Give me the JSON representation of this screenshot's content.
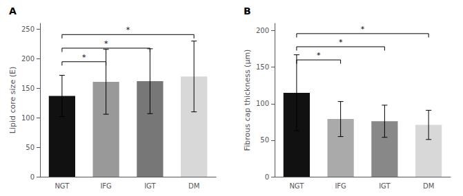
{
  "chart_data": [
    {
      "type": "bar",
      "title": "A",
      "categories": [
        "NGT",
        "IFG",
        "IGT",
        "DM"
      ],
      "values": [
        137,
        161,
        162,
        170
      ],
      "errors": [
        35,
        55,
        55,
        60
      ],
      "colors": [
        "#111111",
        "#999999",
        "#777777",
        "#d8d8d8"
      ],
      "ylabel": "Lipid core size (E)",
      "ylim": [
        0,
        260
      ],
      "yticks": [
        0,
        50,
        100,
        150,
        200,
        250
      ],
      "grid": false,
      "annotations": [
        {
          "text": "*",
          "from": "NGT",
          "to": "IFG",
          "y": 195
        },
        {
          "text": "*",
          "from": "NGT",
          "to": "IGT",
          "y": 218
        },
        {
          "text": "*",
          "from": "NGT",
          "to": "DM",
          "y": 241
        }
      ]
    },
    {
      "type": "bar",
      "title": "B",
      "categories": [
        "NGT",
        "IFG",
        "IGT",
        "DM"
      ],
      "values": [
        115,
        79,
        76,
        71
      ],
      "errors": [
        52,
        24,
        22,
        20
      ],
      "colors": [
        "#111111",
        "#aaaaaa",
        "#888888",
        "#d8d8d8"
      ],
      "ylabel": "Fibrous cap thickness (μm)",
      "ylim": [
        0,
        210
      ],
      "yticks": [
        0,
        50,
        100,
        150,
        200
      ],
      "grid": false,
      "annotations": [
        {
          "text": "*",
          "from": "NGT",
          "to": "IFG",
          "y": 160
        },
        {
          "text": "*",
          "from": "NGT",
          "to": "IGT",
          "y": 178
        },
        {
          "text": "*",
          "from": "NGT",
          "to": "DM",
          "y": 196
        }
      ]
    }
  ]
}
